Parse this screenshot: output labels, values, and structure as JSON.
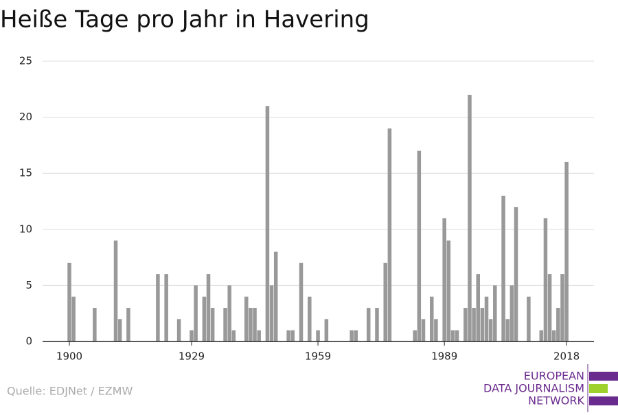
{
  "chart_data": {
    "type": "bar",
    "title": "Heiße Tage pro Jahr in Havering",
    "source": "Quelle: EDJNet / EZMW",
    "logo": [
      "EUROPEAN",
      "DATA JOURNALISM",
      "NETWORK"
    ],
    "color": "#999999",
    "x": [
      1900,
      1901,
      1902,
      1903,
      1904,
      1905,
      1906,
      1907,
      1908,
      1909,
      1910,
      1911,
      1912,
      1913,
      1914,
      1915,
      1916,
      1917,
      1918,
      1919,
      1920,
      1921,
      1922,
      1923,
      1924,
      1925,
      1926,
      1927,
      1928,
      1929,
      1930,
      1931,
      1932,
      1933,
      1934,
      1935,
      1936,
      1937,
      1938,
      1939,
      1940,
      1941,
      1942,
      1943,
      1944,
      1945,
      1946,
      1947,
      1948,
      1949,
      1950,
      1951,
      1952,
      1953,
      1954,
      1955,
      1956,
      1957,
      1958,
      1959,
      1960,
      1961,
      1962,
      1963,
      1964,
      1965,
      1966,
      1967,
      1968,
      1969,
      1970,
      1971,
      1972,
      1973,
      1974,
      1975,
      1976,
      1977,
      1978,
      1979,
      1980,
      1981,
      1982,
      1983,
      1984,
      1985,
      1986,
      1987,
      1988,
      1989,
      1990,
      1991,
      1992,
      1993,
      1994,
      1995,
      1996,
      1997,
      1998,
      1999,
      2000,
      2001,
      2002,
      2003,
      2004,
      2005,
      2006,
      2007,
      2008,
      2009,
      2010,
      2011,
      2012,
      2013,
      2014,
      2015,
      2016,
      2017,
      2018
    ],
    "values": [
      7,
      4,
      0,
      0,
      0,
      0,
      3,
      0,
      0,
      0,
      0,
      9,
      2,
      0,
      3,
      0,
      0,
      0,
      0,
      0,
      0,
      6,
      0,
      6,
      0,
      0,
      2,
      0,
      0,
      1,
      5,
      0,
      4,
      6,
      3,
      0,
      0,
      3,
      5,
      1,
      0,
      0,
      4,
      3,
      3,
      1,
      0,
      21,
      5,
      8,
      0,
      0,
      1,
      1,
      0,
      7,
      0,
      4,
      0,
      1,
      0,
      2,
      0,
      0,
      0,
      0,
      0,
      1,
      1,
      0,
      0,
      3,
      0,
      3,
      0,
      7,
      19,
      0,
      0,
      0,
      0,
      0,
      1,
      17,
      2,
      0,
      4,
      2,
      0,
      11,
      9,
      1,
      1,
      0,
      3,
      22,
      3,
      6,
      3,
      4,
      2,
      5,
      0,
      13,
      2,
      5,
      12,
      0,
      0,
      4,
      0,
      0,
      1,
      11,
      6,
      1,
      3,
      6,
      16
    ],
    "xlim": [
      1893.64,
      2024.5
    ],
    "xticks": [
      1900,
      1929,
      1959,
      1989,
      2018
    ],
    "ylim": [
      0,
      25
    ],
    "yticks": [
      0,
      5,
      10,
      15,
      20,
      25
    ],
    "grid": true
  }
}
